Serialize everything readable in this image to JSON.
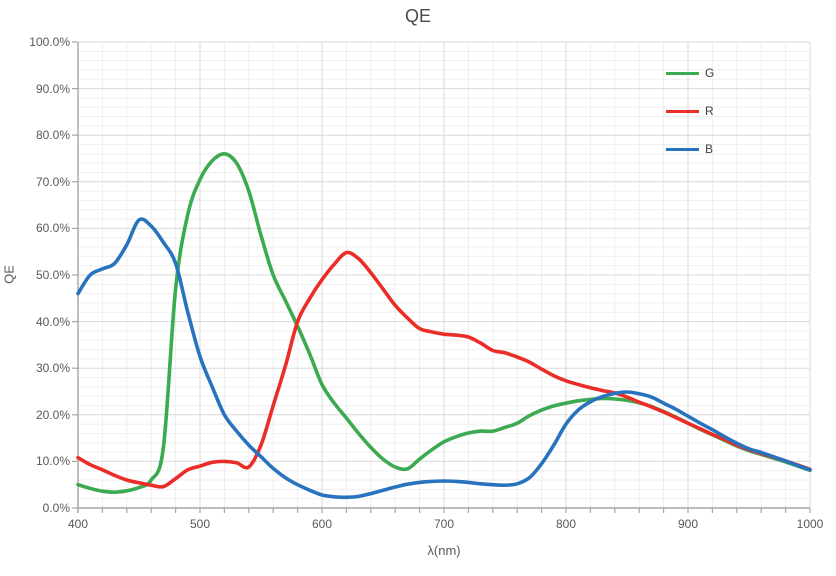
{
  "chart_data": {
    "type": "line",
    "title": "QE",
    "xlabel": "λ(nm)",
    "ylabel": "QE",
    "xlim": [
      400,
      1000
    ],
    "ylim": [
      0,
      100
    ],
    "x_major_step": 100,
    "x_minor_step": 20,
    "y_major_step": 10,
    "y_minor_step": 2,
    "grid": true,
    "legend_position": "inside-top-right",
    "x_tick_labels": [
      "400",
      "500",
      "600",
      "700",
      "800",
      "900",
      "1000"
    ],
    "y_tick_labels": [
      "0.0%",
      "10.0%",
      "20.0%",
      "30.0%",
      "40.0%",
      "50.0%",
      "60.0%",
      "70.0%",
      "80.0%",
      "90.0%",
      "100.0%"
    ],
    "colors": {
      "grid_major": "#d9d9d9",
      "grid_minor": "#efefef",
      "axis": "#a6a6a6",
      "tick_text": "#595959",
      "green": "#3caa50",
      "red": "#eb2d28",
      "blue": "#2873be"
    },
    "x": [
      400,
      410,
      420,
      430,
      440,
      450,
      460,
      470,
      480,
      490,
      500,
      510,
      520,
      530,
      540,
      550,
      560,
      570,
      580,
      590,
      600,
      610,
      620,
      630,
      640,
      650,
      660,
      670,
      680,
      690,
      700,
      710,
      720,
      730,
      740,
      750,
      760,
      770,
      780,
      790,
      800,
      810,
      820,
      830,
      840,
      850,
      860,
      870,
      880,
      890,
      900,
      910,
      920,
      930,
      940,
      950,
      960,
      970,
      980,
      990,
      1000
    ],
    "series": [
      {
        "name": "G",
        "color": "#3caa50",
        "values": [
          5.0,
          4.2,
          3.6,
          3.4,
          3.7,
          4.4,
          6.0,
          13.0,
          47.0,
          63.0,
          70.5,
          74.5,
          76.0,
          74.0,
          68.0,
          58.5,
          50.0,
          44.5,
          39.0,
          33.0,
          26.5,
          22.5,
          19.3,
          16.0,
          13.0,
          10.5,
          8.8,
          8.4,
          10.5,
          12.5,
          14.2,
          15.3,
          16.1,
          16.5,
          16.5,
          17.3,
          18.2,
          19.8,
          21.0,
          21.9,
          22.5,
          23.0,
          23.3,
          23.5,
          23.4,
          23.1,
          22.6,
          21.8,
          20.7,
          19.5,
          18.2,
          16.9,
          15.7,
          14.5,
          13.3,
          12.3,
          11.5,
          10.7,
          9.9,
          9.0,
          8.1
        ]
      },
      {
        "name": "R",
        "color": "#eb2d28",
        "values": [
          10.8,
          9.3,
          8.2,
          7.0,
          6.0,
          5.4,
          4.9,
          4.6,
          6.3,
          8.2,
          9.0,
          9.8,
          10.0,
          9.7,
          8.8,
          13.5,
          22.0,
          30.5,
          40.0,
          45.0,
          49.0,
          52.3,
          54.8,
          53.5,
          50.5,
          47.0,
          43.5,
          40.8,
          38.5,
          37.8,
          37.3,
          37.1,
          36.7,
          35.4,
          33.8,
          33.3,
          32.4,
          31.3,
          29.8,
          28.4,
          27.3,
          26.5,
          25.8,
          25.2,
          24.7,
          23.8,
          22.7,
          21.7,
          20.6,
          19.4,
          18.2,
          17.0,
          15.8,
          14.7,
          13.5,
          12.5,
          11.7,
          10.9,
          10.1,
          9.2,
          8.3
        ]
      },
      {
        "name": "B",
        "color": "#2873be",
        "values": [
          46.0,
          50.0,
          51.3,
          52.5,
          56.5,
          61.8,
          60.5,
          57.0,
          52.5,
          42.0,
          32.5,
          26.0,
          20.0,
          16.5,
          13.5,
          11.0,
          8.5,
          6.5,
          5.0,
          3.8,
          2.8,
          2.4,
          2.3,
          2.5,
          3.1,
          3.8,
          4.5,
          5.1,
          5.5,
          5.7,
          5.8,
          5.7,
          5.5,
          5.2,
          5.0,
          4.9,
          5.2,
          6.5,
          9.5,
          13.5,
          18.0,
          21.0,
          22.8,
          23.9,
          24.6,
          24.9,
          24.5,
          23.8,
          22.5,
          21.2,
          19.7,
          18.2,
          16.8,
          15.3,
          13.9,
          12.7,
          11.9,
          11.0,
          10.1,
          9.1,
          8.2
        ]
      }
    ]
  }
}
